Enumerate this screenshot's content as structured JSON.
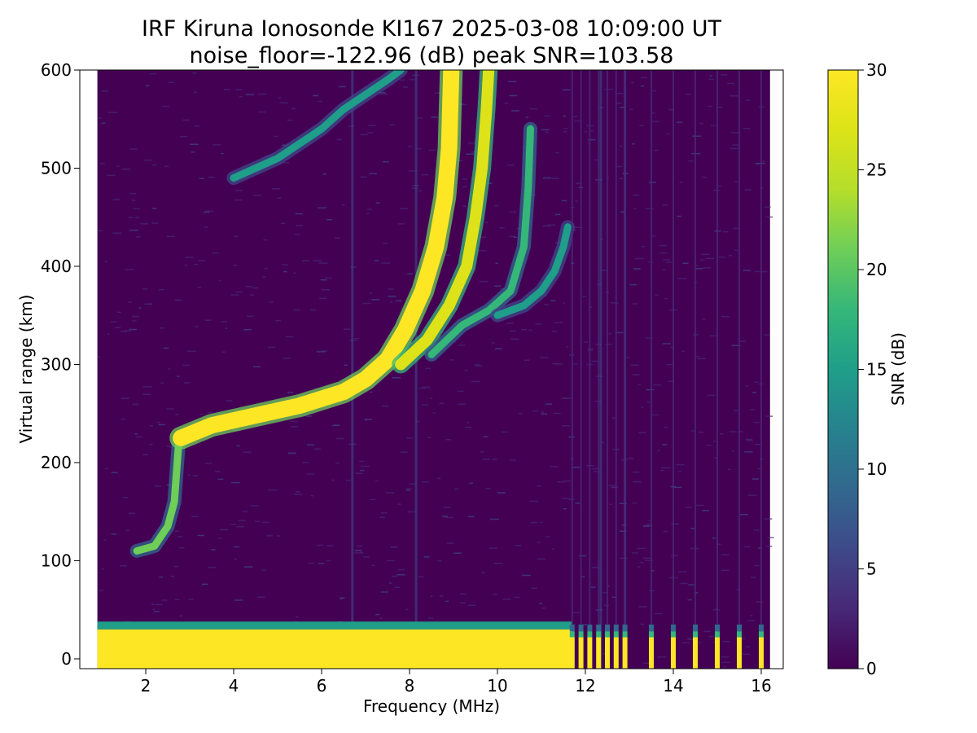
{
  "chart_data": {
    "type": "heatmap",
    "title": "IRF Kiruna Ionosonde KI167 2025-03-08 10:09:00  UT",
    "subtitle": "noise_floor=-122.96 (dB) peak SNR=103.58",
    "xlabel": "Frequency (MHz)",
    "ylabel": "Virtual range (km)",
    "xlim": [
      0.5,
      16.5
    ],
    "ylim": [
      -10,
      600
    ],
    "x_ticks": [
      2,
      4,
      6,
      8,
      10,
      12,
      14,
      16
    ],
    "y_ticks": [
      0,
      100,
      200,
      300,
      400,
      500,
      600
    ],
    "grid": false,
    "colormap": "viridis",
    "colorbar": {
      "label": "SNR (dB)",
      "range": [
        0,
        30
      ],
      "ticks": [
        0,
        5,
        10,
        15,
        20,
        25,
        30
      ]
    },
    "data_freq_range_mhz": [
      0.9,
      16.2
    ],
    "traces": [
      {
        "kind": "ground-clutter",
        "freq_range": [
          0.9,
          11.7
        ],
        "range_km": [
          0,
          30
        ],
        "snr_db": 30
      },
      {
        "kind": "sporadic-echo",
        "points": [
          [
            1.8,
            110
          ],
          [
            2.2,
            115
          ],
          [
            2.5,
            135
          ],
          [
            2.65,
            160
          ],
          [
            2.7,
            190
          ],
          [
            2.75,
            220
          ]
        ],
        "snr_db": 20
      },
      {
        "kind": "F-trace-ordinary",
        "points": [
          [
            2.8,
            225
          ],
          [
            3.5,
            238
          ],
          [
            4.5,
            248
          ],
          [
            5.5,
            258
          ],
          [
            6.5,
            272
          ],
          [
            7.0,
            285
          ],
          [
            7.5,
            305
          ],
          [
            7.9,
            335
          ],
          [
            8.3,
            375
          ],
          [
            8.6,
            420
          ],
          [
            8.8,
            470
          ],
          [
            8.9,
            520
          ],
          [
            8.95,
            600
          ]
        ],
        "snr_db": 30
      },
      {
        "kind": "F-trace-extraordinary",
        "points": [
          [
            7.8,
            300
          ],
          [
            8.4,
            325
          ],
          [
            8.9,
            360
          ],
          [
            9.3,
            400
          ],
          [
            9.5,
            450
          ],
          [
            9.65,
            500
          ],
          [
            9.75,
            560
          ],
          [
            9.8,
            600
          ]
        ],
        "snr_db": 28
      },
      {
        "kind": "F-trace-outer",
        "points": [
          [
            8.5,
            310
          ],
          [
            9.2,
            340
          ],
          [
            9.8,
            355
          ],
          [
            10.3,
            375
          ],
          [
            10.6,
            420
          ],
          [
            10.7,
            480
          ],
          [
            10.75,
            540
          ]
        ],
        "snr_db": 18
      },
      {
        "kind": "F-trace-spread",
        "points": [
          [
            10.0,
            350
          ],
          [
            10.6,
            360
          ],
          [
            11.0,
            375
          ],
          [
            11.3,
            395
          ],
          [
            11.5,
            420
          ],
          [
            11.6,
            440
          ]
        ],
        "snr_db": 14
      },
      {
        "kind": "multihop-echo",
        "points": [
          [
            4.0,
            490
          ],
          [
            5.0,
            510
          ],
          [
            6.0,
            540
          ],
          [
            6.5,
            560
          ],
          [
            7.0,
            575
          ],
          [
            7.5,
            590
          ],
          [
            7.8,
            600
          ]
        ],
        "snr_db": 15
      }
    ],
    "interference_lines_mhz": [
      6.7,
      8.15,
      12.35,
      12.9
    ],
    "discrete_channels_mhz": [
      11.7,
      11.9,
      12.1,
      12.3,
      12.5,
      12.7,
      12.9,
      13.5,
      14.0,
      14.5,
      15.0,
      15.5,
      16.0
    ]
  }
}
